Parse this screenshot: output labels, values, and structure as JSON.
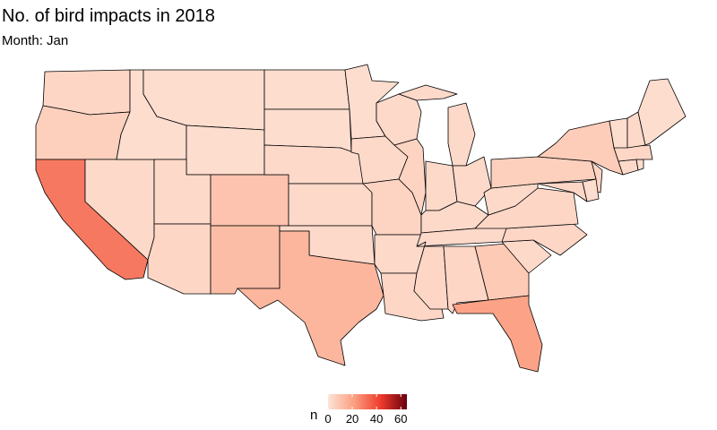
{
  "chart_data": {
    "type": "choropleth",
    "title": "No. of bird impacts in 2018",
    "subtitle": "Month: Jan",
    "values": [
      4,
      6,
      30,
      3,
      2,
      2,
      2,
      3,
      4,
      10,
      12,
      2,
      2,
      3,
      3,
      3,
      14,
      2,
      3,
      5,
      3,
      4,
      3,
      5,
      3,
      3,
      3,
      3,
      3,
      4,
      4,
      8,
      20,
      3,
      4,
      4,
      3,
      6,
      7,
      5,
      4,
      2,
      3,
      2,
      4,
      2,
      3,
      2
    ],
    "legend_title": "n",
    "colorscale": [
      "#fde3d6",
      "#fc9e80",
      "#ef3b2c",
      "#67000d"
    ],
    "clim": [
      0,
      65
    ],
    "cticks": [
      0,
      20,
      40,
      60
    ]
  }
}
